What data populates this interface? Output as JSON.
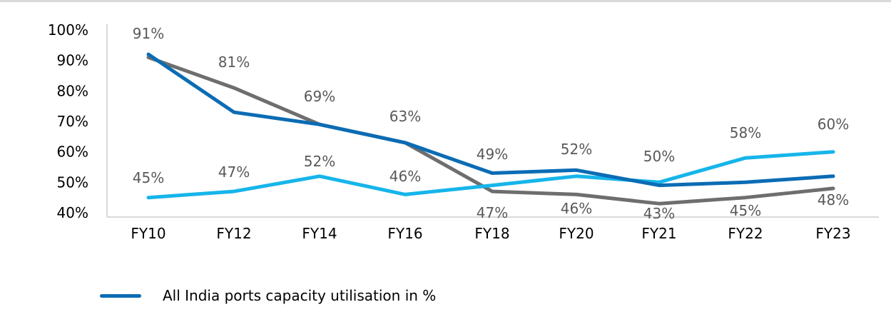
{
  "chart_data": {
    "type": "line",
    "title": "",
    "xlabel": "",
    "ylabel": "",
    "categories": [
      "FY10",
      "FY12",
      "FY14",
      "FY16",
      "FY18",
      "FY20",
      "FY21",
      "FY22",
      "FY23"
    ],
    "y_ticks": [
      "40%",
      "50%",
      "60%",
      "70%",
      "80%",
      "90%",
      "100%"
    ],
    "ylim": [
      40,
      100
    ],
    "grid": false,
    "legend_position": "bottom-left",
    "series": [
      {
        "name": "All India ports capacity utilisation in %",
        "color": "#0b6cb4",
        "values": [
          92,
          73,
          69,
          63,
          53,
          54,
          49,
          50,
          52
        ],
        "labels": []
      },
      {
        "name": "",
        "color": "#6e6e6e",
        "values": [
          91,
          81,
          69,
          63,
          47,
          46,
          43,
          45,
          48
        ],
        "labels": [
          "91%",
          "81%",
          "69%",
          "63%",
          "47%",
          "46%",
          "43%",
          "45%",
          "48%"
        ]
      },
      {
        "name": "",
        "color": "#16b5ea",
        "values": [
          45,
          47,
          52,
          46,
          49,
          52,
          50,
          58,
          60
        ],
        "labels": [
          "45%",
          "47%",
          "52%",
          "46%",
          "49%",
          "52%",
          "50%",
          "58%",
          "60%"
        ]
      }
    ]
  }
}
